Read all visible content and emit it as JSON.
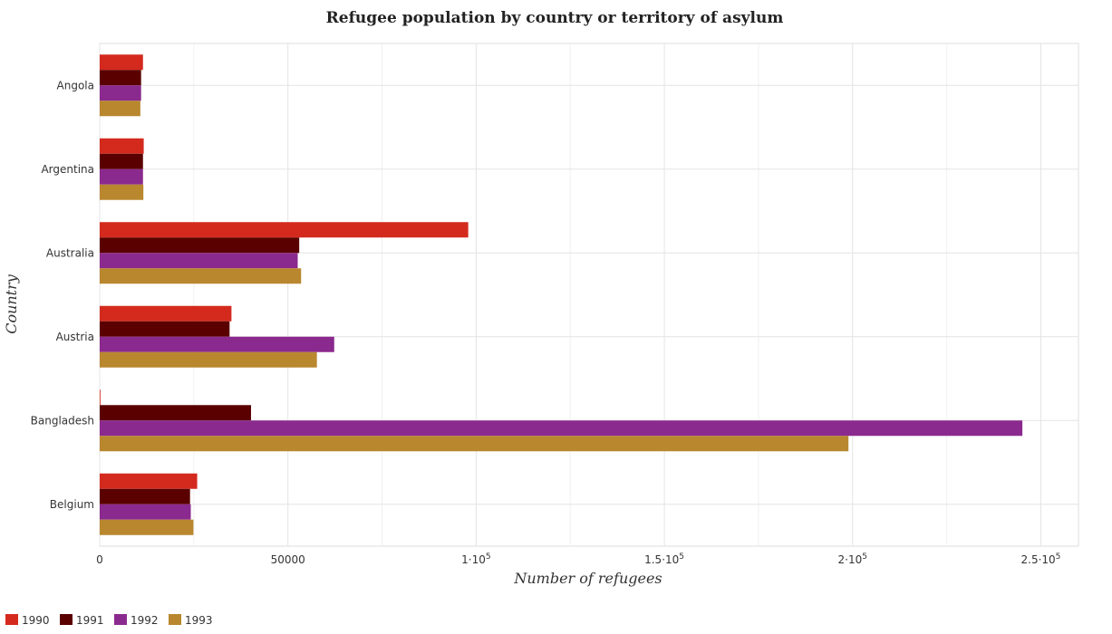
{
  "chart_data": {
    "type": "bar",
    "orientation": "horizontal",
    "title": "Refugee population by country or territory of asylum",
    "xlabel": "Number of refugees",
    "ylabel": "Country",
    "categories": [
      "Angola",
      "Argentina",
      "Australia",
      "Austria",
      "Bangladesh",
      "Belgium"
    ],
    "xlim": [
      0,
      260000
    ],
    "xticks": [
      0,
      50000,
      100000,
      150000,
      200000,
      250000
    ],
    "xtick_labels": [
      "0",
      "50000",
      "1·105",
      "1.5·105",
      "2·105",
      "2.5·105"
    ],
    "grid": true,
    "legend_position": "bottom-left",
    "series": [
      {
        "name": "1990",
        "color": "#d42a1e",
        "values": [
          11500,
          11700,
          97900,
          35000,
          200,
          25900
        ]
      },
      {
        "name": "1991",
        "color": "#5a0000",
        "values": [
          11000,
          11500,
          53000,
          34500,
          40200,
          24000
        ]
      },
      {
        "name": "1992",
        "color": "#8b2a8e",
        "values": [
          11000,
          11500,
          52600,
          62300,
          245100,
          24200
        ]
      },
      {
        "name": "1993",
        "color": "#b8872e",
        "values": [
          10800,
          11600,
          53500,
          57700,
          198900,
          24900
        ]
      }
    ]
  }
}
